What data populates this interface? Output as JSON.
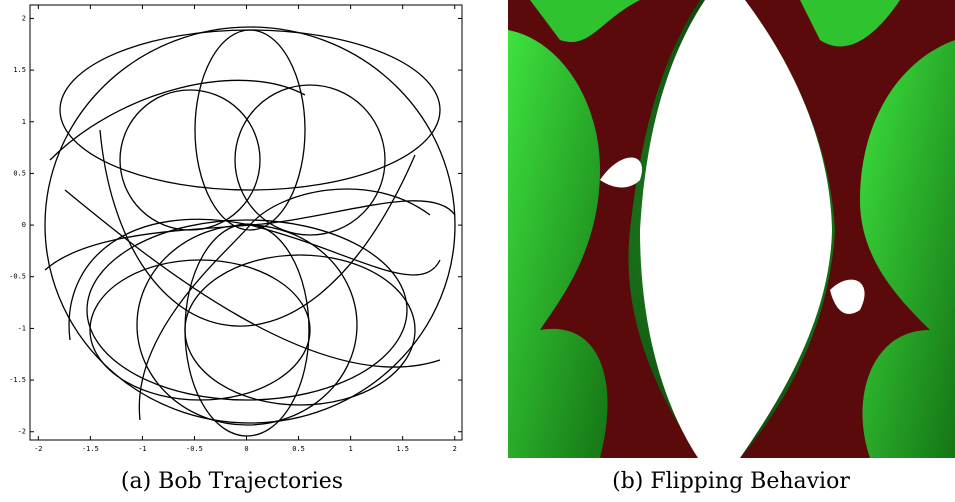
{
  "figures": [
    {
      "caption": "(a) Bob Trajectories",
      "xlim": [
        -2.08,
        2.07
      ],
      "ylim": [
        -2.08,
        2.13
      ],
      "xticks": [
        -2,
        -1.5,
        -1,
        -0.5,
        0,
        0.5,
        1,
        1.5,
        2
      ],
      "yticks": [
        -2,
        -1.5,
        -1,
        -0.5,
        0,
        0.5,
        1,
        1.5,
        2
      ]
    },
    {
      "caption": "(b) Flipping Behavior"
    }
  ]
}
